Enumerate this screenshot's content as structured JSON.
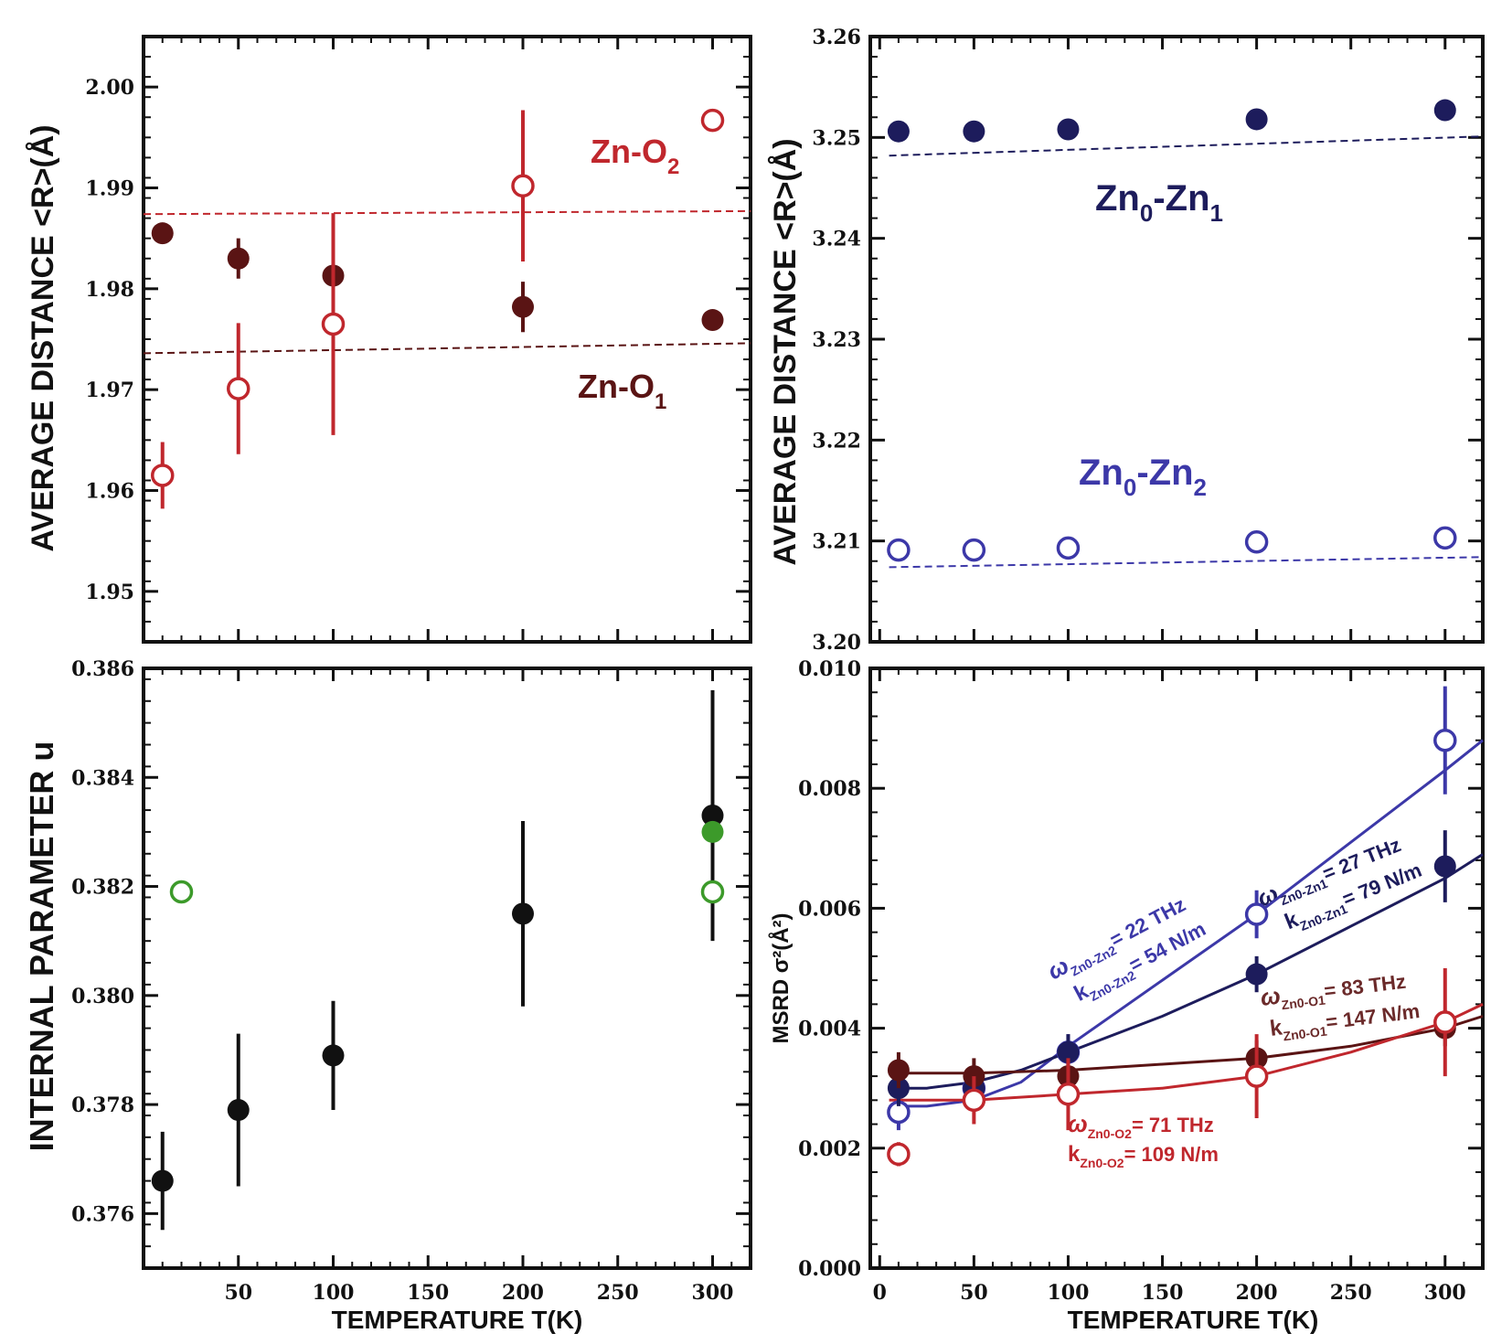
{
  "chart_data": [
    {
      "id": "top-left",
      "type": "scatter",
      "ylabel": "AVERAGE DISTANCE <R>(Å)",
      "xlim": [
        0,
        320
      ],
      "ylim": [
        1.945,
        2.005
      ],
      "x_ticks": [],
      "y_ticks": [
        "1.95",
        "1.96",
        "1.97",
        "1.98",
        "1.99",
        "2.00"
      ],
      "y_tick_values": [
        1.95,
        1.96,
        1.97,
        1.98,
        1.99,
        2.0
      ],
      "series": [
        {
          "name": "Zn-O1",
          "marker": "filled",
          "color": "#5a1414",
          "x": [
            10,
            50,
            100,
            200,
            300
          ],
          "y": [
            1.9855,
            1.983,
            1.9813,
            1.9782,
            1.9769
          ],
          "err": [
            0,
            0.002,
            0.001,
            0.0025,
            0
          ]
        },
        {
          "name": "Zn-O2",
          "marker": "open",
          "color": "#c0272d",
          "x": [
            10,
            50,
            100,
            200,
            300
          ],
          "y": [
            1.9615,
            1.9701,
            1.9765,
            1.9902,
            1.9967
          ],
          "err": [
            0.0033,
            0.0065,
            0.011,
            0.0075,
            0.001
          ]
        }
      ],
      "fits": [
        {
          "color": "#c0272d",
          "x": [
            0,
            320
          ],
          "y": [
            1.9874,
            1.9877
          ]
        },
        {
          "color": "#5a1414",
          "x": [
            0,
            320
          ],
          "y": [
            1.9736,
            1.9746
          ]
        }
      ],
      "annotations": [
        {
          "base": "Zn-O",
          "sub": "2",
          "color": "#c0272d"
        },
        {
          "base": "Zn-O",
          "sub": "1",
          "color": "#5a1414"
        }
      ]
    },
    {
      "id": "top-right",
      "type": "scatter",
      "ylabel": "AVERAGE DISTANCE <R>(Å)",
      "xlim": [
        -5,
        320
      ],
      "ylim": [
        3.2,
        3.26
      ],
      "x_ticks": [],
      "y_ticks": [
        "3.20",
        "3.21",
        "3.22",
        "3.23",
        "3.24",
        "3.25",
        "3.26"
      ],
      "y_tick_values": [
        3.2,
        3.21,
        3.22,
        3.23,
        3.24,
        3.25,
        3.26
      ],
      "series": [
        {
          "name": "Zn0-Zn1",
          "marker": "filled",
          "color": "#1d1c5c",
          "x": [
            10,
            50,
            100,
            200,
            300
          ],
          "y": [
            3.2506,
            3.2506,
            3.2508,
            3.2518,
            3.2527
          ],
          "err": [
            0,
            0,
            0,
            0,
            0
          ]
        },
        {
          "name": "Zn0-Zn2",
          "marker": "open",
          "color": "#3c38a8",
          "x": [
            10,
            50,
            100,
            200,
            300
          ],
          "y": [
            3.2091,
            3.2091,
            3.2093,
            3.2099,
            3.2103
          ],
          "err": [
            0.0003,
            0.0003,
            0.0003,
            0.0003,
            0.0003
          ]
        }
      ],
      "fits": [
        {
          "color": "#1d1c5c",
          "x": [
            5,
            320
          ],
          "y": [
            3.2482,
            3.2501
          ]
        },
        {
          "color": "#3c38a8",
          "x": [
            5,
            320
          ],
          "y": [
            3.2074,
            3.2084
          ]
        }
      ],
      "annotations": [
        {
          "prefix": "Zn",
          "sub0": "0",
          "mid": "-Zn",
          "sub1": "1",
          "color": "#1d1c5c"
        },
        {
          "prefix": "Zn",
          "sub0": "0",
          "mid": "-Zn",
          "sub1": "2",
          "color": "#3c38a8"
        }
      ]
    },
    {
      "id": "bottom-left",
      "type": "scatter",
      "xlabel": "TEMPERATURE T(K)",
      "ylabel": "INTERNAL PARAMETER u",
      "xlim": [
        0,
        320
      ],
      "ylim": [
        0.375,
        0.386
      ],
      "x_ticks": [
        "50",
        "100",
        "150",
        "200",
        "250",
        "300"
      ],
      "x_tick_values": [
        50,
        100,
        150,
        200,
        250,
        300
      ],
      "y_ticks": [
        "0.376",
        "0.378",
        "0.380",
        "0.382",
        "0.384",
        "0.386"
      ],
      "y_tick_values": [
        0.376,
        0.378,
        0.38,
        0.382,
        0.384,
        0.386
      ],
      "series": [
        {
          "marker": "filled",
          "color": "#111111",
          "x": [
            10,
            50,
            100,
            200,
            300
          ],
          "y": [
            0.3766,
            0.3779,
            0.3789,
            0.3815,
            0.3833
          ],
          "err": [
            0.0009,
            0.0014,
            0.001,
            0.0017,
            0.0023
          ]
        },
        {
          "marker": "open",
          "color": "#3c9a2a",
          "x": [
            20,
            300
          ],
          "y": [
            0.3819,
            0.3819
          ],
          "err": [
            0,
            0
          ]
        },
        {
          "marker": "filled",
          "color": "#3c9a2a",
          "x": [
            300
          ],
          "y": [
            0.383
          ],
          "err": [
            0
          ]
        }
      ]
    },
    {
      "id": "bottom-right",
      "type": "scatter",
      "xlabel": "TEMPERATURE T(K)",
      "ylabel": "MSRD σ²(Å²)",
      "xlim": [
        -5,
        320
      ],
      "ylim": [
        0.0,
        0.01
      ],
      "x_ticks": [
        "0",
        "50",
        "100",
        "150",
        "200",
        "250",
        "300"
      ],
      "x_tick_values": [
        0,
        50,
        100,
        150,
        200,
        250,
        300
      ],
      "y_ticks": [
        "0.000",
        "0.002",
        "0.004",
        "0.006",
        "0.008",
        "0.010"
      ],
      "y_tick_values": [
        0.0,
        0.002,
        0.004,
        0.006,
        0.008,
        0.01
      ],
      "series": [
        {
          "name": "Zn0-Zn2",
          "marker": "open",
          "color": "#3c38a8",
          "x": [
            10,
            50,
            100,
            200,
            300
          ],
          "y": [
            0.0026,
            0.003,
            0.0036,
            0.0059,
            0.0088
          ],
          "err": [
            0.0003,
            0.0003,
            0.0003,
            0.0004,
            0.0009
          ]
        },
        {
          "name": "Zn0-Zn1",
          "marker": "filled",
          "color": "#1d1c5c",
          "x": [
            10,
            50,
            100,
            200,
            300
          ],
          "y": [
            0.003,
            0.003,
            0.0036,
            0.0049,
            0.0067
          ],
          "err": [
            0.0003,
            0.0003,
            0.0003,
            0.0003,
            0.0006
          ]
        },
        {
          "name": "Zn0-O1",
          "marker": "filled",
          "color": "#5a1414",
          "x": [
            10,
            50,
            100,
            200,
            300
          ],
          "y": [
            0.0033,
            0.0032,
            0.0032,
            0.0035,
            0.004
          ],
          "err": [
            0.0003,
            0.0003,
            0.0003,
            0.0003,
            0.0003
          ]
        },
        {
          "name": "Zn0-O2",
          "marker": "open",
          "color": "#c0272d",
          "x": [
            10,
            50,
            100,
            200,
            300
          ],
          "y": [
            0.0019,
            0.0028,
            0.0029,
            0.0032,
            0.0041
          ],
          "err": [
            0.0002,
            0.0004,
            0.0006,
            0.0007,
            0.0009
          ]
        }
      ],
      "fits": [
        {
          "color": "#3c38a8",
          "x": [
            5,
            25,
            50,
            75,
            100,
            150,
            200,
            250,
            300,
            320
          ],
          "y": [
            0.0027,
            0.0027,
            0.0028,
            0.0031,
            0.0037,
            0.0048,
            0.0059,
            0.0071,
            0.0083,
            0.0088
          ]
        },
        {
          "color": "#1d1c5c",
          "x": [
            5,
            25,
            50,
            75,
            100,
            150,
            200,
            250,
            300,
            320
          ],
          "y": [
            0.003,
            0.003,
            0.0031,
            0.0033,
            0.0036,
            0.0042,
            0.0049,
            0.0057,
            0.0065,
            0.0069
          ]
        },
        {
          "color": "#5a1414",
          "x": [
            5,
            50,
            100,
            150,
            200,
            250,
            300,
            320
          ],
          "y": [
            0.00325,
            0.00325,
            0.0033,
            0.0034,
            0.0035,
            0.0037,
            0.004,
            0.0042
          ]
        },
        {
          "color": "#c0272d",
          "x": [
            5,
            50,
            100,
            150,
            200,
            250,
            300,
            320
          ],
          "y": [
            0.0028,
            0.0028,
            0.0029,
            0.003,
            0.0032,
            0.0036,
            0.0041,
            0.0044
          ]
        }
      ],
      "annotations": [
        {
          "omega": "ω",
          "k": "k",
          "omega_sub": "Zn0-Zn2",
          "k_sub": "Zn0-Zn2",
          "omega_value": "= 22 THz",
          "k_value": "= 54 N/m",
          "color": "#3c38a8"
        },
        {
          "omega": "ω",
          "k": "k",
          "omega_sub": "Zn0-Zn1",
          "k_sub": "Zn0-Zn1",
          "omega_value": "= 27 THz",
          "k_value": "= 79 N/m",
          "color": "#1d1c5c"
        },
        {
          "omega": "ω",
          "k": "k",
          "omega_sub": "Zn0-O1",
          "k_sub": "Zn0-O1",
          "omega_value": "= 83 THz",
          "k_value": "= 147 N/m",
          "color": "#5a1414"
        },
        {
          "omega": "ω",
          "k": "k",
          "omega_sub": "Zn0-O2",
          "k_sub": "Zn0-O2",
          "omega_value": "= 71 THz",
          "k_value": "= 109 N/m",
          "color": "#c0272d"
        }
      ]
    }
  ]
}
